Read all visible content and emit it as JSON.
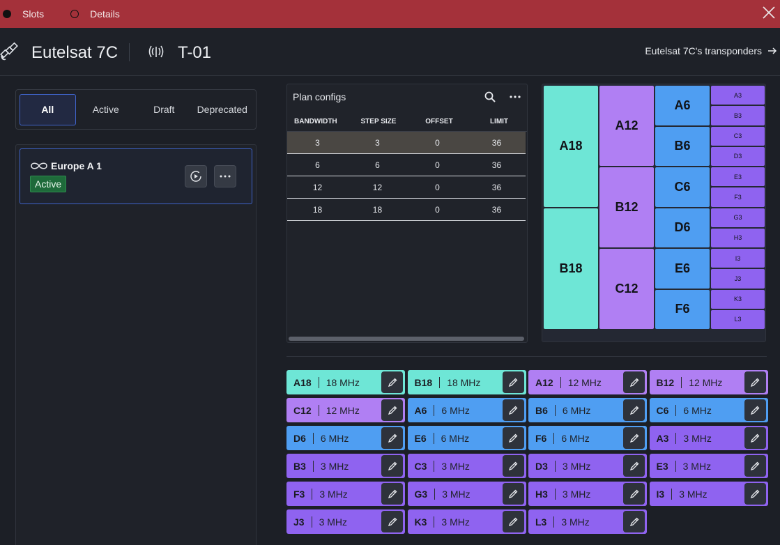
{
  "topbar": {
    "radio_slots": "Slots",
    "radio_details": "Details"
  },
  "header": {
    "title": "Eutelsat 7C",
    "transponder": "T-01",
    "link": "Eutelsat 7C's transponders"
  },
  "filters": {
    "tabs": [
      "All",
      "Active",
      "Draft",
      "Deprecated"
    ],
    "selected": "All"
  },
  "plan_list": {
    "items": [
      {
        "name": "Europe A 1",
        "status": "Active"
      }
    ]
  },
  "plan_configs": {
    "title": "Plan configs",
    "columns": [
      "BANDWIDTH",
      "STEP SIZE",
      "OFFSET",
      "LIMIT"
    ],
    "rows": [
      [
        "3",
        "3",
        "0",
        "36"
      ],
      [
        "6",
        "6",
        "0",
        "36"
      ],
      [
        "12",
        "12",
        "0",
        "36"
      ],
      [
        "18",
        "18",
        "0",
        "36"
      ]
    ],
    "selected_row": 0
  },
  "colors": {
    "bw18": "#6ee6d6",
    "bw12": "#b07ff3",
    "bw6": "#4f9ef2",
    "bw3": "#8f63f0",
    "accent": "#3f63c9",
    "topbar": "#a4313a",
    "active_badge": "#1e6a3a"
  },
  "grid": {
    "col18": [
      "A18",
      "B18"
    ],
    "col12": [
      "A12",
      "B12",
      "C12"
    ],
    "col6": [
      "A6",
      "B6",
      "C6",
      "D6",
      "E6",
      "F6"
    ],
    "col3": [
      "A3",
      "B3",
      "C3",
      "D3",
      "E3",
      "F3",
      "G3",
      "H3",
      "I3",
      "J3",
      "K3",
      "L3"
    ]
  },
  "slots": [
    {
      "label": "A18",
      "freq": "18 MHz",
      "bw": 18
    },
    {
      "label": "B18",
      "freq": "18 MHz",
      "bw": 18
    },
    {
      "label": "A12",
      "freq": "12 MHz",
      "bw": 12
    },
    {
      "label": "B12",
      "freq": "12 MHz",
      "bw": 12
    },
    {
      "label": "C12",
      "freq": "12 MHz",
      "bw": 12
    },
    {
      "label": "A6",
      "freq": "6 MHz",
      "bw": 6
    },
    {
      "label": "B6",
      "freq": "6 MHz",
      "bw": 6
    },
    {
      "label": "C6",
      "freq": "6 MHz",
      "bw": 6
    },
    {
      "label": "D6",
      "freq": "6 MHz",
      "bw": 6
    },
    {
      "label": "E6",
      "freq": "6 MHz",
      "bw": 6
    },
    {
      "label": "F6",
      "freq": "6 MHz",
      "bw": 6
    },
    {
      "label": "A3",
      "freq": "3 MHz",
      "bw": 3
    },
    {
      "label": "B3",
      "freq": "3 MHz",
      "bw": 3
    },
    {
      "label": "C3",
      "freq": "3 MHz",
      "bw": 3
    },
    {
      "label": "D3",
      "freq": "3 MHz",
      "bw": 3
    },
    {
      "label": "E3",
      "freq": "3 MHz",
      "bw": 3
    },
    {
      "label": "F3",
      "freq": "3 MHz",
      "bw": 3
    },
    {
      "label": "G3",
      "freq": "3 MHz",
      "bw": 3
    },
    {
      "label": "H3",
      "freq": "3 MHz",
      "bw": 3
    },
    {
      "label": "I3",
      "freq": "3 MHz",
      "bw": 3
    },
    {
      "label": "J3",
      "freq": "3 MHz",
      "bw": 3
    },
    {
      "label": "K3",
      "freq": "3 MHz",
      "bw": 3
    },
    {
      "label": "L3",
      "freq": "3 MHz",
      "bw": 3
    }
  ]
}
